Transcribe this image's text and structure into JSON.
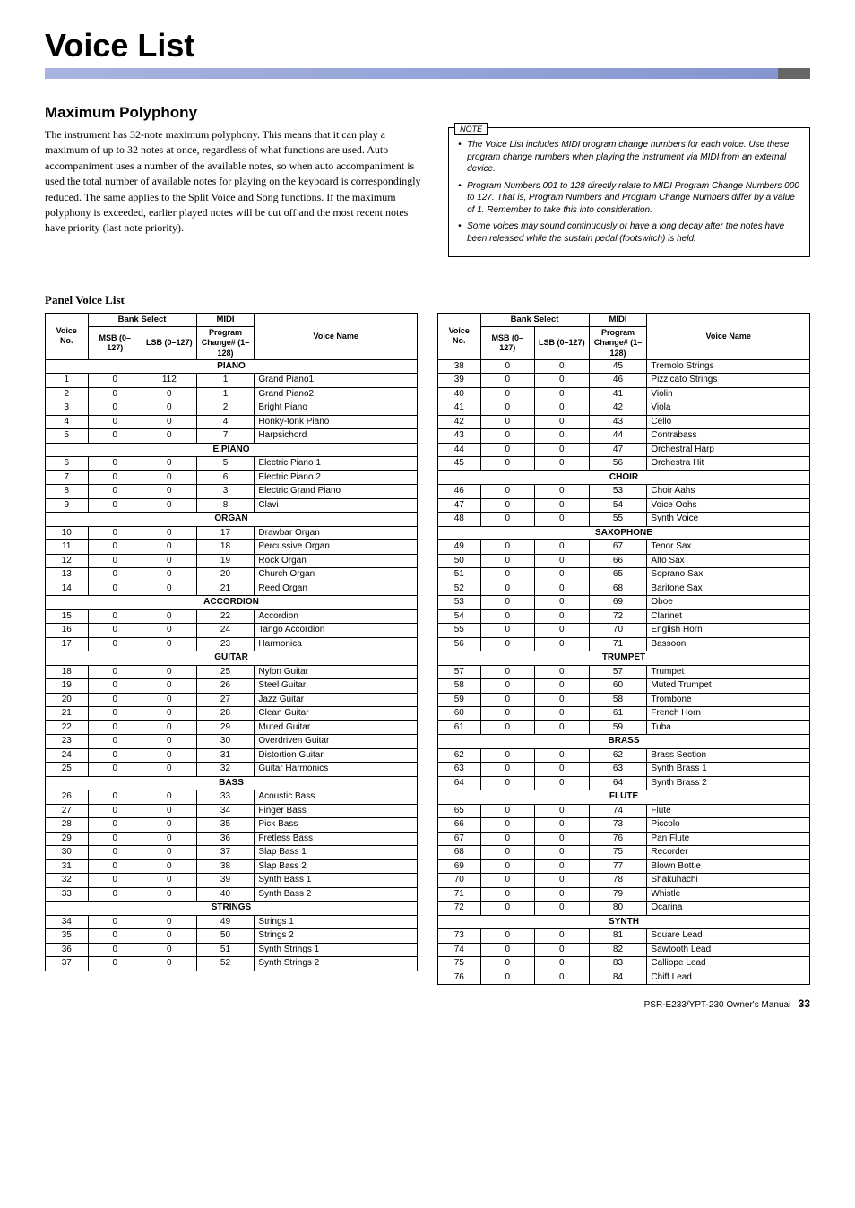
{
  "title": "Voice List",
  "subtitle": "Maximum Polyphony",
  "poly_text": "The instrument has 32-note maximum polyphony. This means that it can play a maximum of up to 32 notes at once, regardless of what functions are used. Auto accompaniment uses a number of the available notes, so when auto accompaniment is used the total number of available notes for playing on the keyboard is correspondingly reduced. The same applies to the Split Voice and Song functions. If the maximum polyphony is exceeded, earlier played notes will be cut off and the most recent notes have priority (last note priority).",
  "note_label": "NOTE",
  "notes": [
    "The Voice List includes MIDI program change numbers for each voice. Use these program change numbers when playing the instrument via MIDI from an external device.",
    "Program Numbers 001 to 128 directly relate to MIDI Program Change Numbers 000 to 127. That is, Program Numbers and Program Change Numbers differ by a value of 1. Remember to take this into consideration.",
    "Some voices may sound continuously or have a long decay after the notes have been released while the sustain pedal (footswitch) is held."
  ],
  "panel_heading": "Panel Voice List",
  "headers": {
    "vno": "Voice No.",
    "bs": "Bank Select",
    "msb": "MSB (0–127)",
    "lsb": "LSB (0–127)",
    "midi": "MIDI",
    "pc": "Program Change# (1–128)",
    "vname": "Voice Name"
  },
  "left": [
    {
      "cat": "PIANO"
    },
    {
      "v": 1,
      "m": 0,
      "l": 112,
      "p": 1,
      "n": "Grand Piano1"
    },
    {
      "v": 2,
      "m": 0,
      "l": 0,
      "p": 1,
      "n": "Grand Piano2"
    },
    {
      "v": 3,
      "m": 0,
      "l": 0,
      "p": 2,
      "n": "Bright Piano"
    },
    {
      "v": 4,
      "m": 0,
      "l": 0,
      "p": 4,
      "n": "Honky-tonk Piano"
    },
    {
      "v": 5,
      "m": 0,
      "l": 0,
      "p": 7,
      "n": "Harpsichord"
    },
    {
      "cat": "E.PIANO"
    },
    {
      "v": 6,
      "m": 0,
      "l": 0,
      "p": 5,
      "n": "Electric Piano 1"
    },
    {
      "v": 7,
      "m": 0,
      "l": 0,
      "p": 6,
      "n": "Electric Piano 2"
    },
    {
      "v": 8,
      "m": 0,
      "l": 0,
      "p": 3,
      "n": "Electric Grand Piano"
    },
    {
      "v": 9,
      "m": 0,
      "l": 0,
      "p": 8,
      "n": "Clavi"
    },
    {
      "cat": "ORGAN"
    },
    {
      "v": 10,
      "m": 0,
      "l": 0,
      "p": 17,
      "n": "Drawbar Organ"
    },
    {
      "v": 11,
      "m": 0,
      "l": 0,
      "p": 18,
      "n": "Percussive Organ"
    },
    {
      "v": 12,
      "m": 0,
      "l": 0,
      "p": 19,
      "n": "Rock Organ"
    },
    {
      "v": 13,
      "m": 0,
      "l": 0,
      "p": 20,
      "n": "Church Organ"
    },
    {
      "v": 14,
      "m": 0,
      "l": 0,
      "p": 21,
      "n": "Reed Organ"
    },
    {
      "cat": "ACCORDION"
    },
    {
      "v": 15,
      "m": 0,
      "l": 0,
      "p": 22,
      "n": "Accordion"
    },
    {
      "v": 16,
      "m": 0,
      "l": 0,
      "p": 24,
      "n": "Tango Accordion"
    },
    {
      "v": 17,
      "m": 0,
      "l": 0,
      "p": 23,
      "n": "Harmonica"
    },
    {
      "cat": "GUITAR"
    },
    {
      "v": 18,
      "m": 0,
      "l": 0,
      "p": 25,
      "n": "Nylon Guitar"
    },
    {
      "v": 19,
      "m": 0,
      "l": 0,
      "p": 26,
      "n": "Steel Guitar"
    },
    {
      "v": 20,
      "m": 0,
      "l": 0,
      "p": 27,
      "n": "Jazz Guitar"
    },
    {
      "v": 21,
      "m": 0,
      "l": 0,
      "p": 28,
      "n": "Clean Guitar"
    },
    {
      "v": 22,
      "m": 0,
      "l": 0,
      "p": 29,
      "n": "Muted Guitar"
    },
    {
      "v": 23,
      "m": 0,
      "l": 0,
      "p": 30,
      "n": "Overdriven Guitar"
    },
    {
      "v": 24,
      "m": 0,
      "l": 0,
      "p": 31,
      "n": "Distortion Guitar"
    },
    {
      "v": 25,
      "m": 0,
      "l": 0,
      "p": 32,
      "n": "Guitar Harmonics"
    },
    {
      "cat": "BASS"
    },
    {
      "v": 26,
      "m": 0,
      "l": 0,
      "p": 33,
      "n": "Acoustic Bass"
    },
    {
      "v": 27,
      "m": 0,
      "l": 0,
      "p": 34,
      "n": "Finger Bass"
    },
    {
      "v": 28,
      "m": 0,
      "l": 0,
      "p": 35,
      "n": "Pick Bass"
    },
    {
      "v": 29,
      "m": 0,
      "l": 0,
      "p": 36,
      "n": "Fretless Bass"
    },
    {
      "v": 30,
      "m": 0,
      "l": 0,
      "p": 37,
      "n": "Slap Bass 1"
    },
    {
      "v": 31,
      "m": 0,
      "l": 0,
      "p": 38,
      "n": "Slap Bass 2"
    },
    {
      "v": 32,
      "m": 0,
      "l": 0,
      "p": 39,
      "n": "Synth Bass 1"
    },
    {
      "v": 33,
      "m": 0,
      "l": 0,
      "p": 40,
      "n": "Synth Bass 2"
    },
    {
      "cat": "STRINGS"
    },
    {
      "v": 34,
      "m": 0,
      "l": 0,
      "p": 49,
      "n": "Strings 1"
    },
    {
      "v": 35,
      "m": 0,
      "l": 0,
      "p": 50,
      "n": "Strings 2"
    },
    {
      "v": 36,
      "m": 0,
      "l": 0,
      "p": 51,
      "n": "Synth Strings 1"
    },
    {
      "v": 37,
      "m": 0,
      "l": 0,
      "p": 52,
      "n": "Synth Strings 2"
    }
  ],
  "right": [
    {
      "v": 38,
      "m": 0,
      "l": 0,
      "p": 45,
      "n": "Tremolo Strings"
    },
    {
      "v": 39,
      "m": 0,
      "l": 0,
      "p": 46,
      "n": "Pizzicato Strings"
    },
    {
      "v": 40,
      "m": 0,
      "l": 0,
      "p": 41,
      "n": "Violin"
    },
    {
      "v": 41,
      "m": 0,
      "l": 0,
      "p": 42,
      "n": "Viola"
    },
    {
      "v": 42,
      "m": 0,
      "l": 0,
      "p": 43,
      "n": "Cello"
    },
    {
      "v": 43,
      "m": 0,
      "l": 0,
      "p": 44,
      "n": "Contrabass"
    },
    {
      "v": 44,
      "m": 0,
      "l": 0,
      "p": 47,
      "n": "Orchestral Harp"
    },
    {
      "v": 45,
      "m": 0,
      "l": 0,
      "p": 56,
      "n": "Orchestra Hit"
    },
    {
      "cat": "CHOIR"
    },
    {
      "v": 46,
      "m": 0,
      "l": 0,
      "p": 53,
      "n": "Choir Aahs"
    },
    {
      "v": 47,
      "m": 0,
      "l": 0,
      "p": 54,
      "n": "Voice Oohs"
    },
    {
      "v": 48,
      "m": 0,
      "l": 0,
      "p": 55,
      "n": "Synth Voice"
    },
    {
      "cat": "SAXOPHONE"
    },
    {
      "v": 49,
      "m": 0,
      "l": 0,
      "p": 67,
      "n": "Tenor Sax"
    },
    {
      "v": 50,
      "m": 0,
      "l": 0,
      "p": 66,
      "n": "Alto Sax"
    },
    {
      "v": 51,
      "m": 0,
      "l": 0,
      "p": 65,
      "n": "Soprano Sax"
    },
    {
      "v": 52,
      "m": 0,
      "l": 0,
      "p": 68,
      "n": "Baritone Sax"
    },
    {
      "v": 53,
      "m": 0,
      "l": 0,
      "p": 69,
      "n": "Oboe"
    },
    {
      "v": 54,
      "m": 0,
      "l": 0,
      "p": 72,
      "n": "Clarinet"
    },
    {
      "v": 55,
      "m": 0,
      "l": 0,
      "p": 70,
      "n": "English Horn"
    },
    {
      "v": 56,
      "m": 0,
      "l": 0,
      "p": 71,
      "n": "Bassoon"
    },
    {
      "cat": "TRUMPET"
    },
    {
      "v": 57,
      "m": 0,
      "l": 0,
      "p": 57,
      "n": "Trumpet"
    },
    {
      "v": 58,
      "m": 0,
      "l": 0,
      "p": 60,
      "n": "Muted Trumpet"
    },
    {
      "v": 59,
      "m": 0,
      "l": 0,
      "p": 58,
      "n": "Trombone"
    },
    {
      "v": 60,
      "m": 0,
      "l": 0,
      "p": 61,
      "n": "French Horn"
    },
    {
      "v": 61,
      "m": 0,
      "l": 0,
      "p": 59,
      "n": "Tuba"
    },
    {
      "cat": "BRASS"
    },
    {
      "v": 62,
      "m": 0,
      "l": 0,
      "p": 62,
      "n": "Brass Section"
    },
    {
      "v": 63,
      "m": 0,
      "l": 0,
      "p": 63,
      "n": "Synth Brass 1"
    },
    {
      "v": 64,
      "m": 0,
      "l": 0,
      "p": 64,
      "n": "Synth Brass 2"
    },
    {
      "cat": "FLUTE"
    },
    {
      "v": 65,
      "m": 0,
      "l": 0,
      "p": 74,
      "n": "Flute"
    },
    {
      "v": 66,
      "m": 0,
      "l": 0,
      "p": 73,
      "n": "Piccolo"
    },
    {
      "v": 67,
      "m": 0,
      "l": 0,
      "p": 76,
      "n": "Pan Flute"
    },
    {
      "v": 68,
      "m": 0,
      "l": 0,
      "p": 75,
      "n": "Recorder"
    },
    {
      "v": 69,
      "m": 0,
      "l": 0,
      "p": 77,
      "n": "Blown Bottle"
    },
    {
      "v": 70,
      "m": 0,
      "l": 0,
      "p": 78,
      "n": "Shakuhachi"
    },
    {
      "v": 71,
      "m": 0,
      "l": 0,
      "p": 79,
      "n": "Whistle"
    },
    {
      "v": 72,
      "m": 0,
      "l": 0,
      "p": 80,
      "n": "Ocarina"
    },
    {
      "cat": "SYNTH"
    },
    {
      "v": 73,
      "m": 0,
      "l": 0,
      "p": 81,
      "n": "Square Lead"
    },
    {
      "v": 74,
      "m": 0,
      "l": 0,
      "p": 82,
      "n": "Sawtooth Lead"
    },
    {
      "v": 75,
      "m": 0,
      "l": 0,
      "p": 83,
      "n": "Calliope Lead"
    },
    {
      "v": 76,
      "m": 0,
      "l": 0,
      "p": 84,
      "n": "Chiff Lead"
    }
  ],
  "footer": "PSR-E233/YPT-230  Owner's Manual",
  "page": "33"
}
